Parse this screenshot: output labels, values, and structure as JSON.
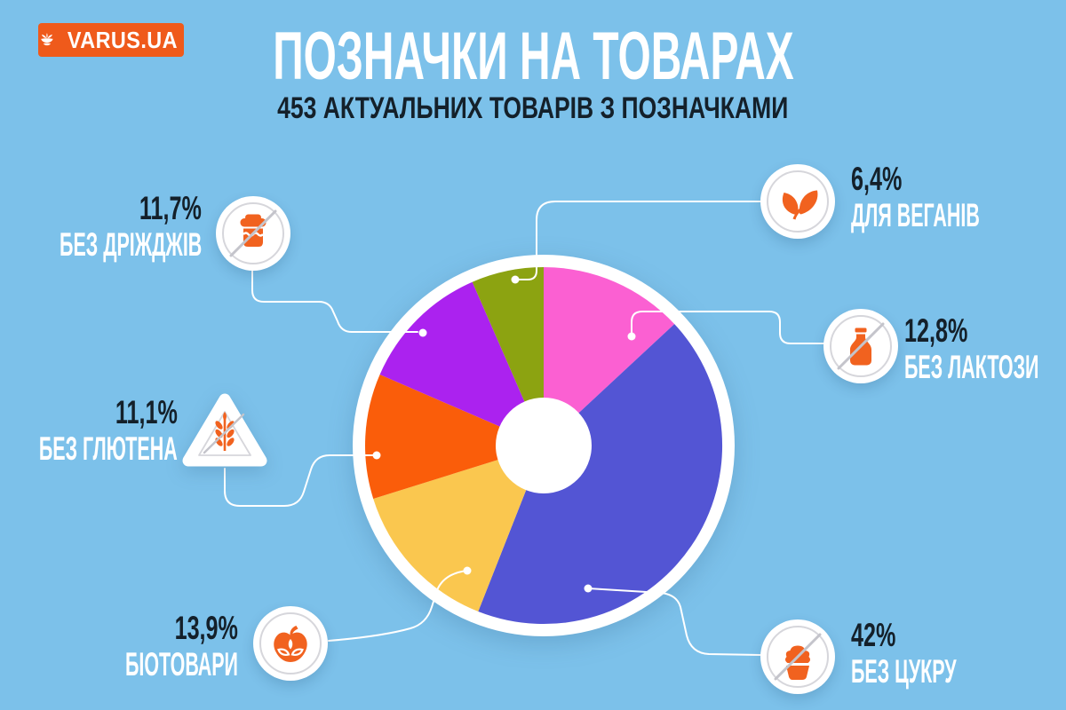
{
  "theme": {
    "background": "#7CC1EA",
    "logo_orange": "#EF5A1B",
    "icon_orange": "#F1621F",
    "title_color": "#FFFFFF",
    "dark_text": "#14202A",
    "leader_line": "#FFFFFF",
    "badge_ring": "#D6D6DB",
    "badge_slash": "#C4C4CB"
  },
  "logo": {
    "text": "VARUS.UA",
    "icon": "varus-flower-icon"
  },
  "header": {
    "title": "ПОЗНАЧКИ НА ТОВАРАХ",
    "subtitle": "453 АКТУАЛЬНИХ ТОВАРІВ З ПОЗНАЧКАМИ"
  },
  "chart_data": {
    "type": "pie",
    "donut": true,
    "title": "ПОЗНАЧКИ НА ТОВАРАХ",
    "subtitle": "453 АКТУАЛЬНИХ ТОВАРІВ З ПОЗНАЧКАМИ",
    "total_labeled_products": 453,
    "start_angle_deg": 0,
    "direction": "clockwise",
    "legend_position": "callouts",
    "segments": [
      {
        "label": "БЕЗ ЛАКТОЗИ",
        "display": "12,8%",
        "value_pct": 12.8,
        "color": "#FB60D2",
        "icon": "milk-bottle-crossed"
      },
      {
        "label": "БЕЗ ЦУКРУ",
        "display": "42%",
        "value_pct": 42.0,
        "color": "#5355D4",
        "icon": "cupcake-crossed"
      },
      {
        "label": "БІОТОВАРИ",
        "display": "13,9%",
        "value_pct": 13.9,
        "color": "#FAC74F",
        "icon": "bio-apple"
      },
      {
        "label": "БЕЗ ГЛЮТЕНА",
        "display": "11,1%",
        "value_pct": 11.1,
        "color": "#FA5D0A",
        "icon": "wheat-crossed"
      },
      {
        "label": "БЕЗ ДРІЖДЖІВ",
        "display": "11,7%",
        "value_pct": 11.7,
        "color": "#AB22EF",
        "icon": "yeast-jar-crossed"
      },
      {
        "label": "ДЛЯ ВЕГАНІВ",
        "display": "6,4%",
        "value_pct": 6.4,
        "color": "#8CA311",
        "icon": "vegan-leaves"
      }
    ]
  }
}
